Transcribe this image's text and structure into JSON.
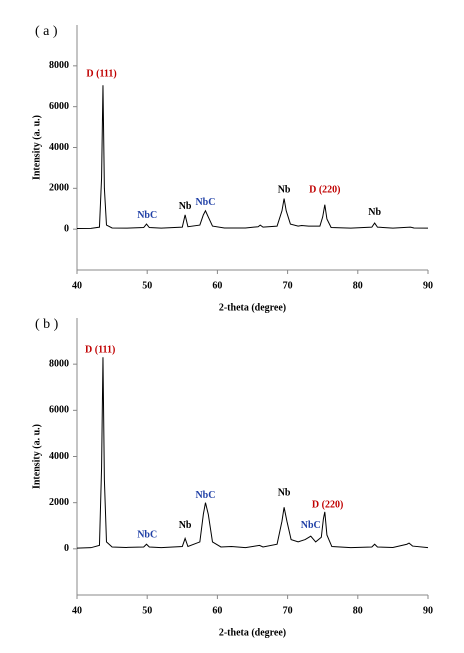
{
  "chart_data": [
    {
      "type": "line",
      "title": "( a )",
      "x_label": "2-theta (degree)",
      "y_label": "Intensity (a. u.)",
      "xlim": [
        40,
        90
      ],
      "xticks": [
        40,
        50,
        60,
        70,
        80,
        90
      ],
      "ylim": [
        -2000,
        10000
      ],
      "yticks": [
        0,
        2000,
        4000,
        6000,
        8000
      ],
      "series": [
        {
          "color": "#000000",
          "x": [
            40,
            42,
            43.2,
            43.5,
            43.7,
            43.9,
            44.2,
            45,
            47,
            49.5,
            49.9,
            50.3,
            52,
            55,
            55.4,
            55.8,
            57.5,
            58.0,
            58.3,
            58.7,
            59.3,
            61,
            64,
            65.8,
            66.1,
            66.5,
            68.5,
            69.2,
            69.5,
            69.8,
            70.4,
            71.5,
            72,
            73,
            74.6,
            75.0,
            75.3,
            75.6,
            76.2,
            79,
            82,
            82.4,
            82.8,
            85,
            87.5,
            88,
            90
          ],
          "values": [
            30,
            40,
            100,
            2500,
            7050,
            2000,
            200,
            60,
            50,
            80,
            250,
            80,
            50,
            100,
            700,
            120,
            200,
            700,
            900,
            600,
            150,
            60,
            60,
            120,
            200,
            100,
            150,
            900,
            1500,
            900,
            250,
            150,
            180,
            150,
            150,
            600,
            1200,
            500,
            80,
            50,
            100,
            300,
            100,
            50,
            100,
            60,
            50
          ]
        }
      ],
      "annotations": [
        {
          "text": "D (111)",
          "x": 43.5,
          "y": 7600,
          "color": "#c00000"
        },
        {
          "text": "NbC",
          "x": 50,
          "y": 650,
          "color": "#1f3fa6"
        },
        {
          "text": "Nb",
          "x": 55.4,
          "y": 1100,
          "color": "#000000"
        },
        {
          "text": "NbC",
          "x": 58.3,
          "y": 1300,
          "color": "#1f3fa6"
        },
        {
          "text": "Nb",
          "x": 69.5,
          "y": 1900,
          "color": "#000000"
        },
        {
          "text": "D (220)",
          "x": 75.3,
          "y": 1900,
          "color": "#c00000"
        },
        {
          "text": "Nb",
          "x": 82.4,
          "y": 800,
          "color": "#000000"
        }
      ]
    },
    {
      "type": "line",
      "title": "( b )",
      "x_label": "2-theta (degree)",
      "y_label": "Intensity (a. u.)",
      "xlim": [
        40,
        90
      ],
      "xticks": [
        40,
        50,
        60,
        70,
        80,
        90
      ],
      "ylim": [
        -2000,
        10000
      ],
      "yticks": [
        0,
        2000,
        4000,
        6000,
        8000
      ],
      "series": [
        {
          "color": "#000000",
          "x": [
            40,
            42,
            43.2,
            43.5,
            43.7,
            43.9,
            44.2,
            45,
            47,
            49.5,
            49.9,
            50.3,
            52,
            55,
            55.4,
            55.8,
            57.5,
            58.0,
            58.3,
            58.7,
            59.3,
            60.5,
            62,
            64,
            66,
            66.5,
            68.5,
            69.2,
            69.5,
            69.9,
            70.5,
            71.5,
            72.5,
            73.3,
            74,
            74.8,
            75.1,
            75.3,
            75.6,
            76.3,
            79,
            82,
            82.4,
            82.8,
            85,
            87.0,
            87.3,
            87.8,
            90
          ],
          "values": [
            30,
            50,
            150,
            3500,
            8300,
            3000,
            300,
            80,
            60,
            80,
            200,
            80,
            50,
            100,
            450,
            100,
            300,
            1500,
            2000,
            1500,
            300,
            80,
            100,
            50,
            150,
            80,
            200,
            1200,
            1800,
            1200,
            400,
            300,
            400,
            550,
            300,
            500,
            1300,
            1600,
            600,
            100,
            50,
            80,
            200,
            80,
            60,
            200,
            250,
            120,
            50
          ]
        }
      ],
      "annotations": [
        {
          "text": "D (111)",
          "x": 43.3,
          "y": 8600,
          "color": "#c00000"
        },
        {
          "text": "NbC",
          "x": 50,
          "y": 600,
          "color": "#1f3fa6"
        },
        {
          "text": "Nb",
          "x": 55.4,
          "y": 1000,
          "color": "#000000"
        },
        {
          "text": "NbC",
          "x": 58.3,
          "y": 2300,
          "color": "#1f3fa6"
        },
        {
          "text": "Nb",
          "x": 69.5,
          "y": 2400,
          "color": "#000000"
        },
        {
          "text": "NbC",
          "x": 73.3,
          "y": 1000,
          "color": "#1f3fa6"
        },
        {
          "text": "D (220)",
          "x": 75.7,
          "y": 1900,
          "color": "#c00000"
        }
      ]
    }
  ]
}
